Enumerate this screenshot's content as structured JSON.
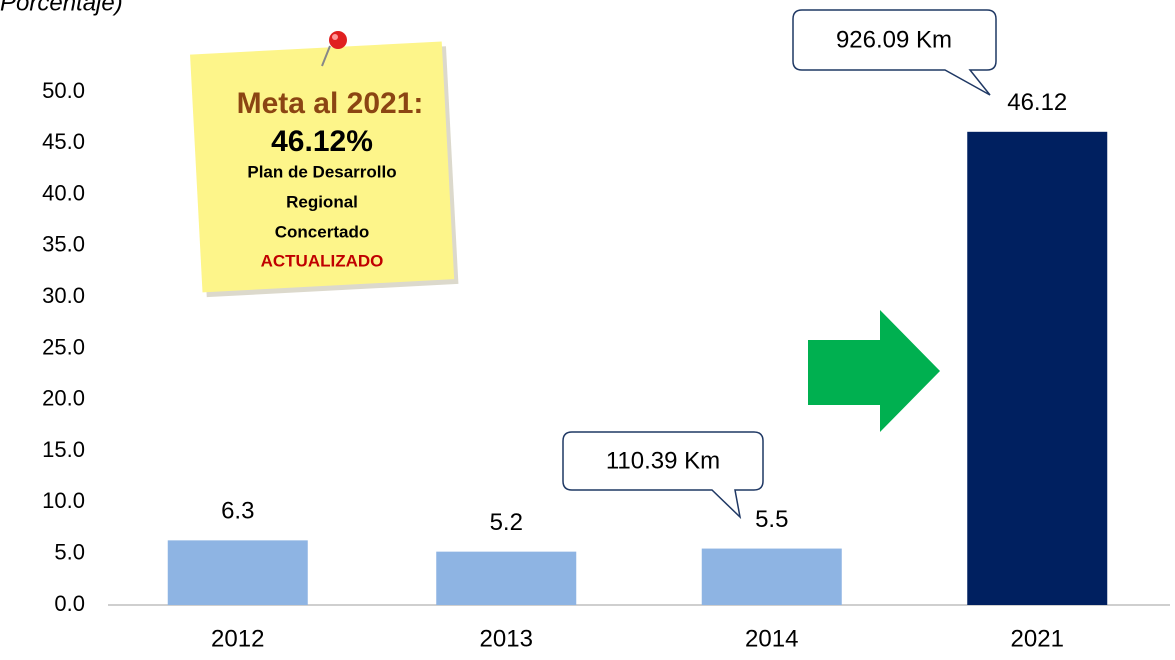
{
  "chart_data": {
    "type": "bar",
    "title": "Porcentaje)",
    "categories": [
      "2012",
      "2013",
      "2014",
      "2021"
    ],
    "values": [
      6.3,
      5.2,
      5.5,
      46.12
    ],
    "colors": [
      "#8eb4e3",
      "#8eb4e3",
      "#8eb4e3",
      "#002060"
    ],
    "ylim": [
      0,
      50
    ],
    "yticks": [
      {
        "value": 0,
        "label": "0.0"
      },
      {
        "value": 5,
        "label": "5.0"
      },
      {
        "value": 10,
        "label": "10.0"
      },
      {
        "value": 15,
        "label": "15.0"
      },
      {
        "value": 20,
        "label": "20.0"
      },
      {
        "value": 25,
        "label": "25.0"
      },
      {
        "value": 30,
        "label": "30.0"
      },
      {
        "value": 35,
        "label": "35.0"
      },
      {
        "value": 40,
        "label": "40.0"
      },
      {
        "value": 45,
        "label": "45.0"
      },
      {
        "value": 50,
        "label": "50.0"
      }
    ],
    "grid": false,
    "callouts": [
      "110.39 Km",
      "926.09 Km"
    ],
    "note": [
      "Meta al 2021:",
      "46.12%",
      "Plan de Desarrollo",
      "Regional",
      "Concertado",
      "ACTUALIZADO"
    ]
  }
}
